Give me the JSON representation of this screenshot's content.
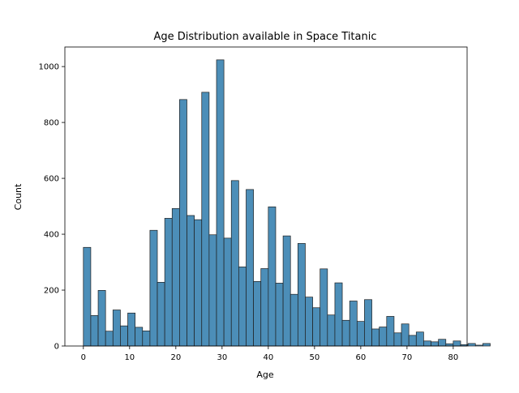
{
  "chart_data": {
    "type": "bar",
    "title": "Age Distribution available in Space Titanic",
    "xlabel": "Age",
    "ylabel": "Count",
    "xlim": [
      -4,
      83
    ],
    "ylim": [
      0,
      1070
    ],
    "xticks": [
      0,
      10,
      20,
      30,
      40,
      50,
      60,
      70,
      80
    ],
    "yticks": [
      0,
      200,
      400,
      600,
      800,
      1000
    ],
    "bin_width": 1.6,
    "bin_edges_start": 0,
    "values": [
      353,
      109,
      199,
      53,
      129,
      72,
      118,
      67,
      54,
      414,
      228,
      457,
      492,
      882,
      467,
      452,
      908,
      398,
      1024,
      386,
      592,
      283,
      560,
      231,
      277,
      498,
      225,
      394,
      185,
      367,
      175,
      137,
      276,
      111,
      226,
      92,
      161,
      88,
      166,
      61,
      68,
      106,
      47,
      79,
      38,
      50,
      18,
      15,
      24,
      8,
      18,
      5,
      9,
      3,
      9
    ],
    "bar_color": "#4c8eb8",
    "grid": false,
    "legend": false
  }
}
